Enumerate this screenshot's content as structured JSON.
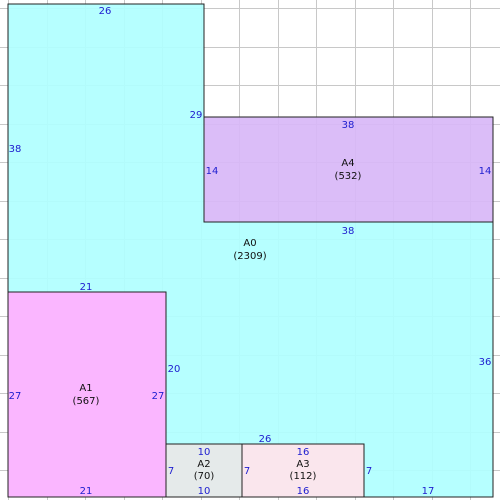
{
  "colors": {
    "background": "#ffffff",
    "grid": "#c8c8c8",
    "outline": "#222222",
    "dimension_text": "#2020d0",
    "label_text": "#111111"
  },
  "areas": [
    {
      "id": "A0",
      "name": "A0",
      "area": "(2309)",
      "fill": "#b0ffff"
    },
    {
      "id": "A1",
      "name": "A1",
      "area": "(567)",
      "fill": "#ffb0ff"
    },
    {
      "id": "A2",
      "name": "A2",
      "area": "(70)",
      "fill": "#e8e8e8"
    },
    {
      "id": "A3",
      "name": "A3",
      "area": "(112)",
      "fill": "#ffe4ec"
    },
    {
      "id": "A4",
      "name": "A4",
      "area": "(532)",
      "fill": "#d8b8f8"
    }
  ],
  "dimensions": {
    "a0_top": "26",
    "a0_left": "38",
    "a0_notch_left": "29",
    "a0_right": "36",
    "a0_bottom_right": "17",
    "a0_above_a2a3": "26",
    "a0_right_of_a1": "20",
    "a1_top": "21",
    "a1_bottom": "21",
    "a1_left": "27",
    "a1_right": "27",
    "a2_top": "10",
    "a2_bottom": "10",
    "a2_left": "7",
    "a2_right": "7",
    "a3_top": "16",
    "a3_bottom": "16",
    "a3_right": "7",
    "a4_top": "38",
    "a4_bottom": "38",
    "a4_left": "14",
    "a4_right": "14"
  }
}
